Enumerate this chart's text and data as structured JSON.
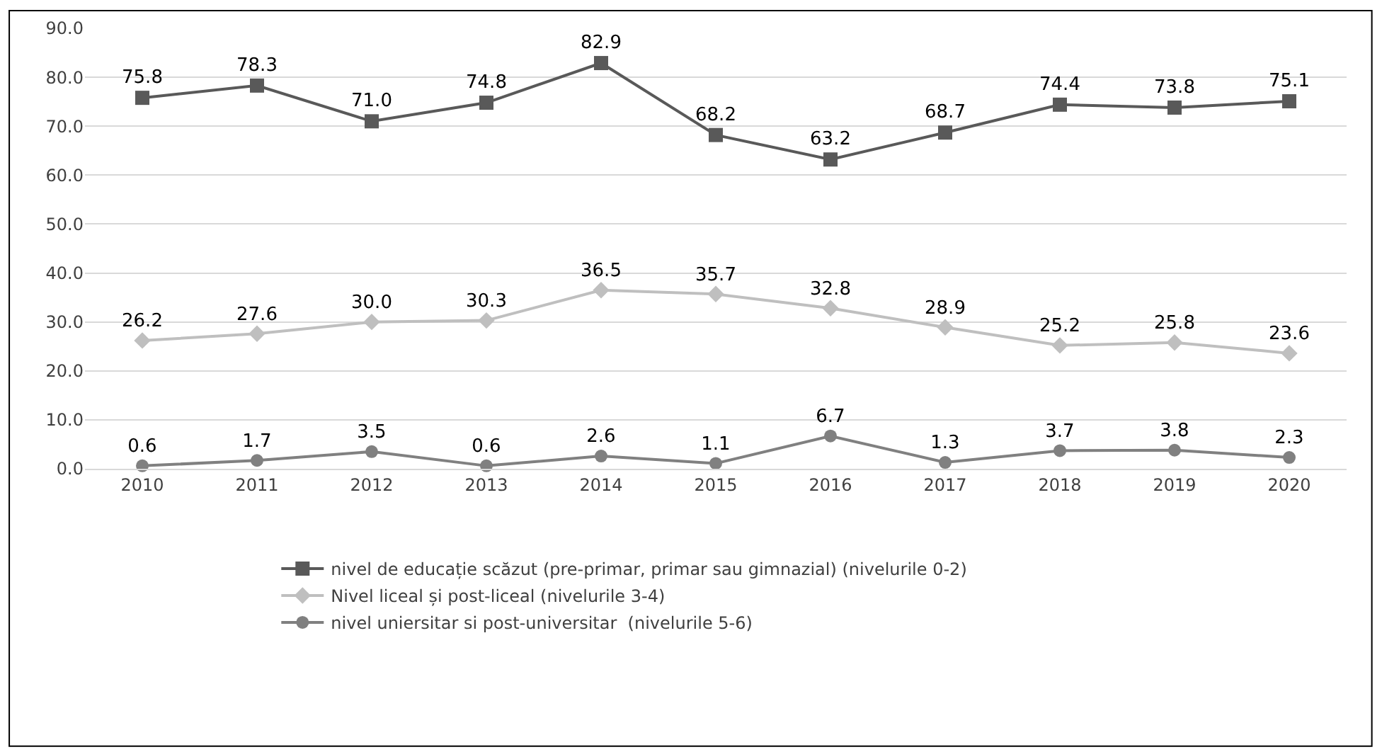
{
  "chart_data": {
    "type": "line",
    "categories": [
      "2010",
      "2011",
      "2012",
      "2013",
      "2014",
      "2015",
      "2016",
      "2017",
      "2018",
      "2019",
      "2020"
    ],
    "series": [
      {
        "name": "nivel de educație scăzut (pre-primar, primar sau gimnazial) (nivelurile 0-2)",
        "color": "#595959",
        "marker": "square",
        "values": [
          75.8,
          78.3,
          71.0,
          74.8,
          82.9,
          68.2,
          63.2,
          68.7,
          74.4,
          73.8,
          75.1
        ],
        "value_labels": [
          "75.8",
          "78.3",
          "71.0",
          "74.8",
          "82.9",
          "68.2",
          "63.2",
          "68.7",
          "74.4",
          "73.8",
          "75.1"
        ]
      },
      {
        "name": "Nivel liceal și post-liceal (nivelurile 3-4)",
        "color": "#bfbfbf",
        "marker": "diamond",
        "values": [
          26.2,
          27.6,
          30.0,
          30.3,
          36.5,
          35.7,
          32.8,
          28.9,
          25.2,
          25.8,
          23.6
        ],
        "value_labels": [
          "26.2",
          "27.6",
          "30.0",
          "30.3",
          "36.5",
          "35.7",
          "32.8",
          "28.9",
          "25.2",
          "25.8",
          "23.6"
        ]
      },
      {
        "name": "nivel uniersitar si post-universitar  (nivelurile 5-6)",
        "color": "#808080",
        "marker": "circle",
        "values": [
          0.6,
          1.7,
          3.5,
          0.6,
          2.6,
          1.1,
          6.7,
          1.3,
          3.7,
          3.8,
          2.3
        ],
        "value_labels": [
          "0.6",
          "1.7",
          "3.5",
          "0.6",
          "2.6",
          "1.1",
          "6.7",
          "1.3",
          "3.7",
          "3.8",
          "2.3"
        ]
      }
    ],
    "ylim": [
      0,
      90
    ],
    "yticks": [
      {
        "value": 0,
        "label": "0.0"
      },
      {
        "value": 10,
        "label": "10.0"
      },
      {
        "value": 20,
        "label": "20.0"
      },
      {
        "value": 30,
        "label": "30.0"
      },
      {
        "value": 40,
        "label": "40.0"
      },
      {
        "value": 50,
        "label": "50.0"
      },
      {
        "value": 60,
        "label": "60.0"
      },
      {
        "value": 70,
        "label": "70.0"
      },
      {
        "value": 80,
        "label": "80.0"
      },
      {
        "value": 90,
        "label": "90.0"
      }
    ],
    "grid": "y",
    "legend": "bottom",
    "line_style": "solid"
  }
}
